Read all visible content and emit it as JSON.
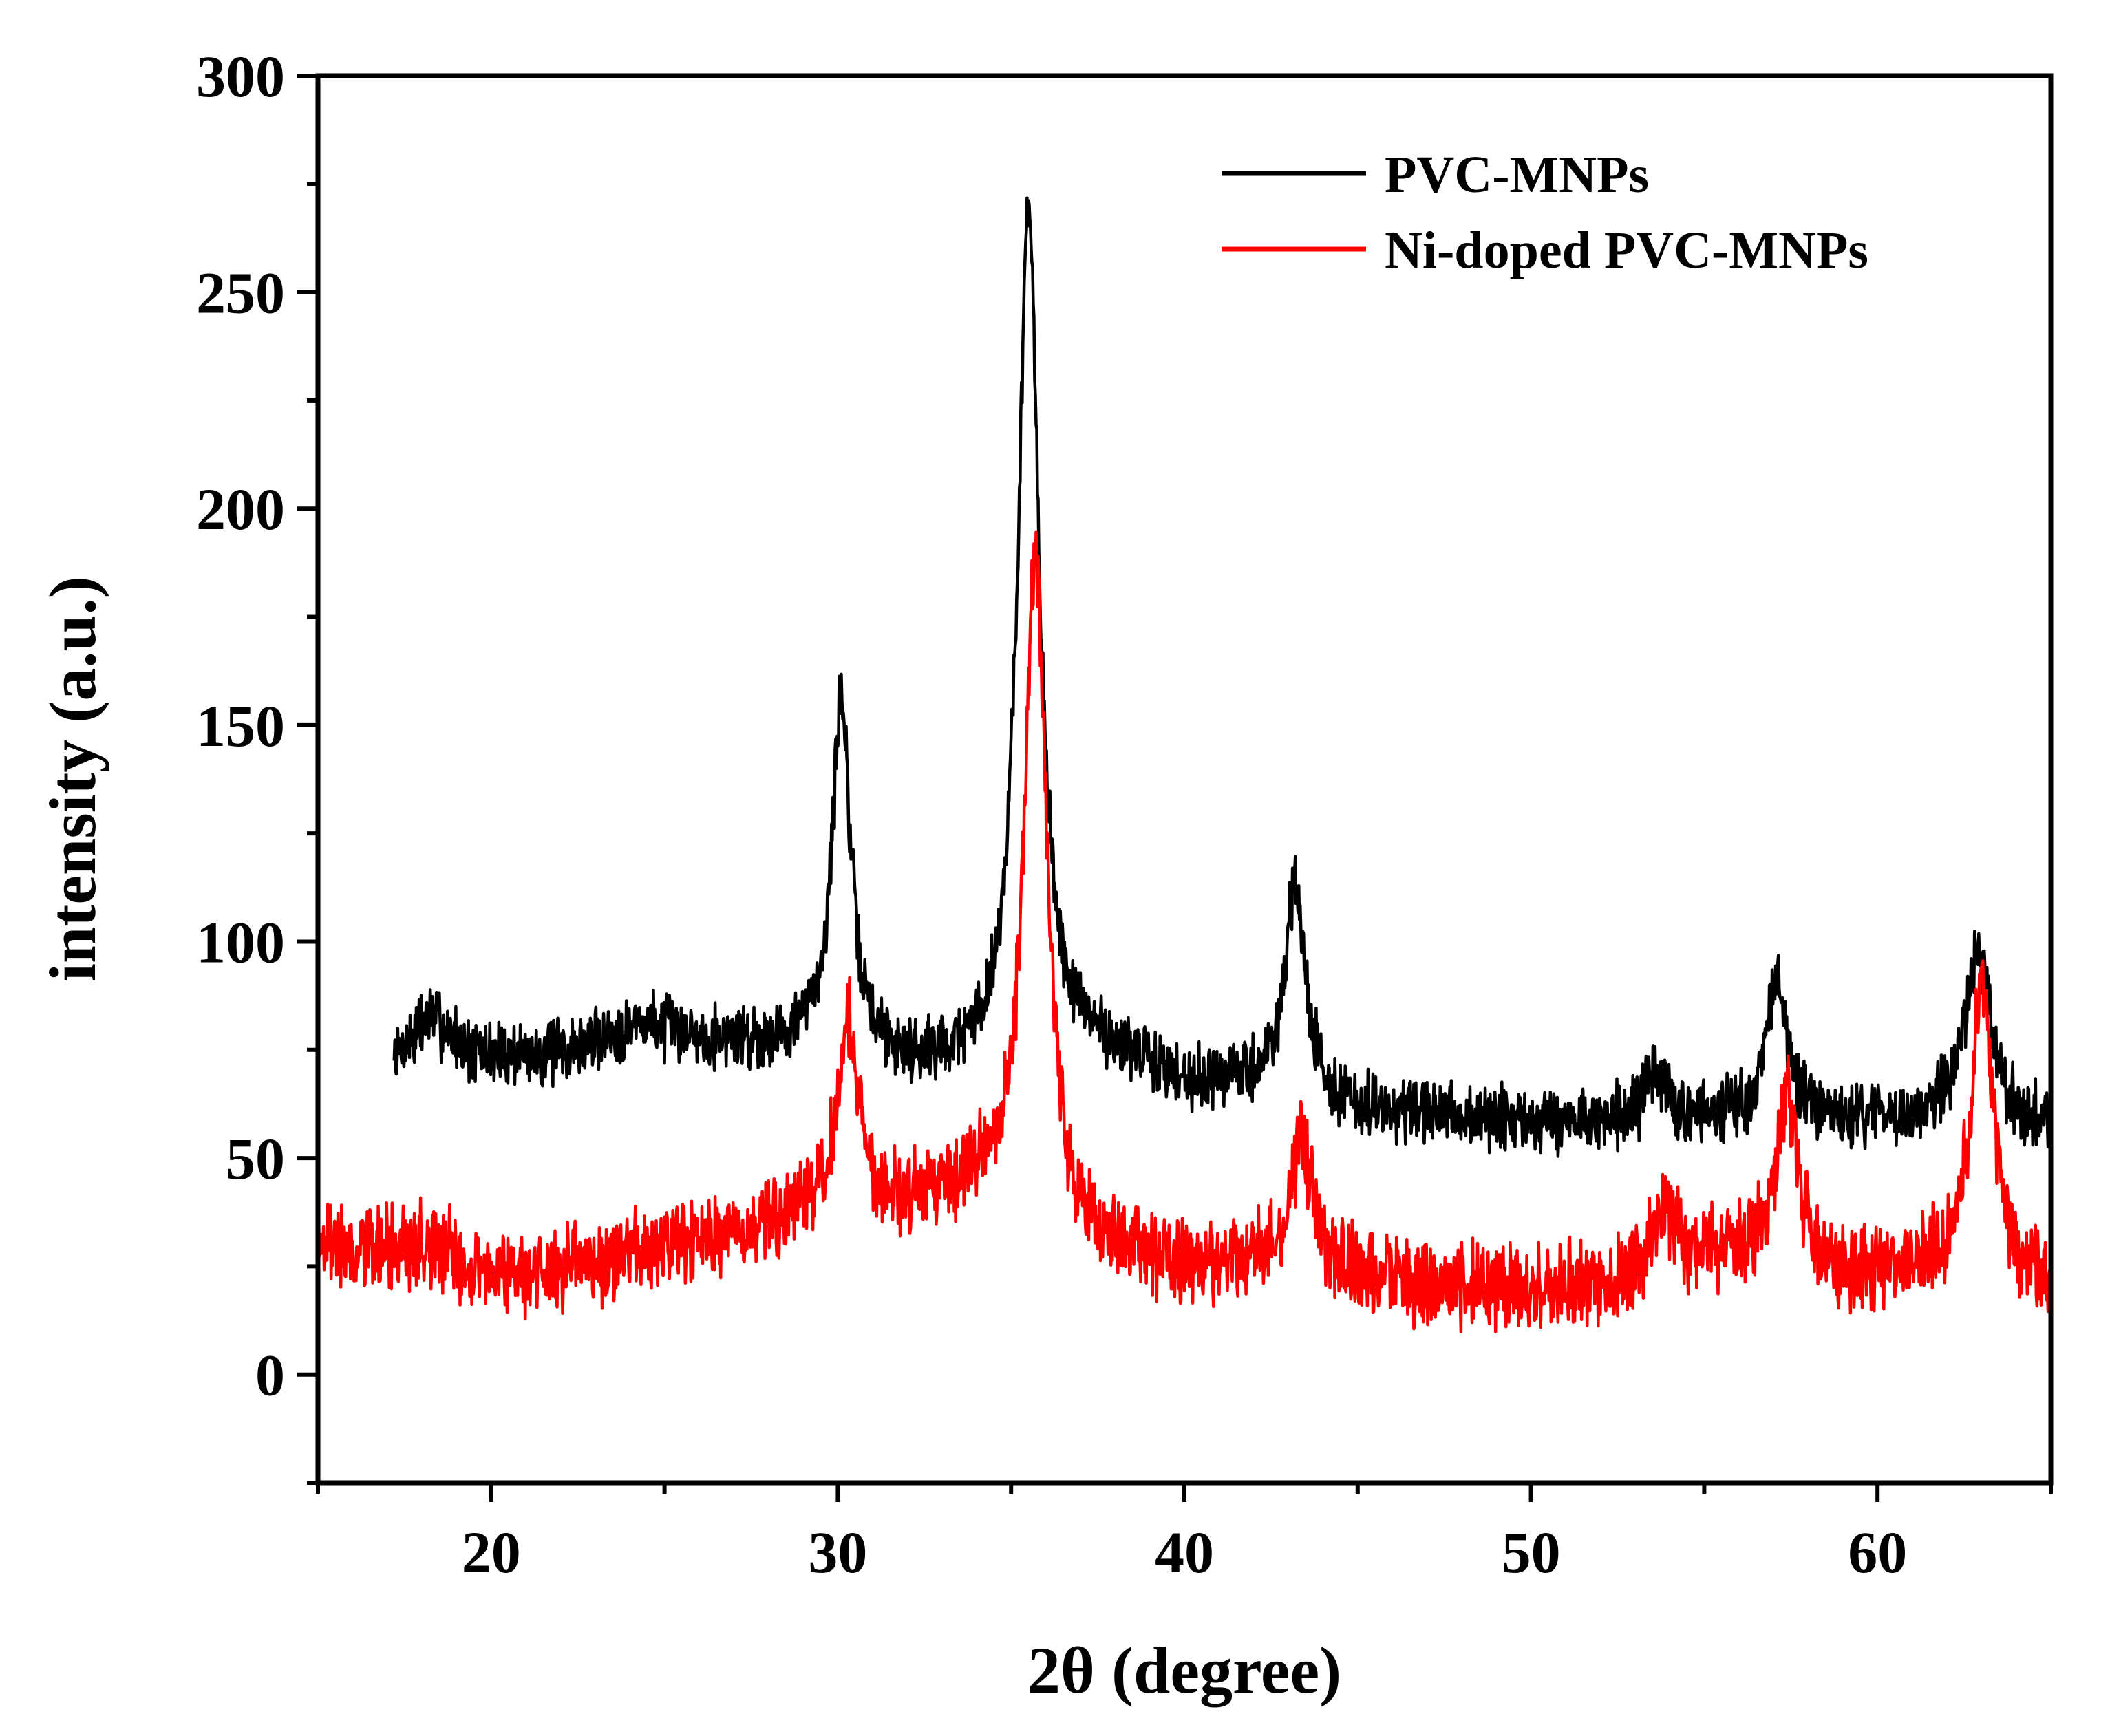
{
  "chart_data": {
    "type": "line",
    "title": "",
    "xlabel": "2θ (degree)",
    "ylabel": "intensity (a.u.)",
    "xlim": [
      15,
      65
    ],
    "ylim": [
      -25,
      300
    ],
    "x_ticks": [
      20,
      30,
      40,
      50,
      60
    ],
    "y_ticks": [
      0,
      50,
      100,
      150,
      200,
      250,
      300
    ],
    "x_tick_labels": [
      "20",
      "30",
      "40",
      "50",
      "60"
    ],
    "y_tick_labels": [
      "0",
      "50",
      "100",
      "150",
      "200",
      "250",
      "300"
    ],
    "legend_position": "top-right",
    "series": [
      {
        "name": "PVC-MNPs",
        "color": "#000000",
        "x_start": 17.2,
        "x_end": 65,
        "baseline": [
          [
            17.2,
            73
          ],
          [
            18.2,
            83
          ],
          [
            19.5,
            74
          ],
          [
            22,
            74
          ],
          [
            24.5,
            81
          ],
          [
            26,
            78
          ],
          [
            28,
            76
          ],
          [
            29.5,
            77
          ],
          [
            32,
            71
          ],
          [
            34,
            71
          ],
          [
            37.5,
            74
          ],
          [
            40,
            67
          ],
          [
            42,
            66
          ],
          [
            45,
            60
          ],
          [
            50,
            58
          ],
          [
            53,
            58
          ],
          [
            56,
            59
          ],
          [
            59,
            58
          ],
          [
            62,
            60
          ],
          [
            65,
            57
          ]
        ],
        "peaks": [
          {
            "center": 30.1,
            "height": 80,
            "width": 0.32
          },
          {
            "center": 35.5,
            "height": 195,
            "width": 0.38
          },
          {
            "center": 43.2,
            "height": 48,
            "width": 0.38
          },
          {
            "center": 53.6,
            "height": 10,
            "width": 0.4
          },
          {
            "center": 57.1,
            "height": 33,
            "width": 0.35
          },
          {
            "center": 62.9,
            "height": 40,
            "width": 0.4
          }
        ],
        "noise": 12,
        "seed": 7
      },
      {
        "name": "Ni-doped PVC-MNPs",
        "color": "#ff0000",
        "x_start": 15,
        "x_end": 65,
        "baseline": [
          [
            15,
            32
          ],
          [
            16,
            28
          ],
          [
            18,
            30
          ],
          [
            20,
            24
          ],
          [
            22,
            24
          ],
          [
            24,
            27
          ],
          [
            26,
            30
          ],
          [
            28,
            34
          ],
          [
            29.5,
            36
          ],
          [
            32,
            40
          ],
          [
            34,
            42
          ],
          [
            37,
            28
          ],
          [
            40,
            24
          ],
          [
            42,
            26
          ],
          [
            45,
            22
          ],
          [
            50,
            20
          ],
          [
            52,
            20
          ],
          [
            54,
            26
          ],
          [
            56,
            28
          ],
          [
            59,
            22
          ],
          [
            62,
            24
          ],
          [
            65,
            20
          ]
        ],
        "peaks": [
          {
            "center": 30.3,
            "height": 45,
            "width": 0.35
          },
          {
            "center": 35.7,
            "height": 152,
            "width": 0.4
          },
          {
            "center": 43.4,
            "height": 30,
            "width": 0.38
          },
          {
            "center": 53.8,
            "height": 12,
            "width": 0.4
          },
          {
            "center": 57.4,
            "height": 40,
            "width": 0.38
          },
          {
            "center": 63.0,
            "height": 68,
            "width": 0.38
          }
        ],
        "noise": 16,
        "seed": 19
      }
    ]
  }
}
